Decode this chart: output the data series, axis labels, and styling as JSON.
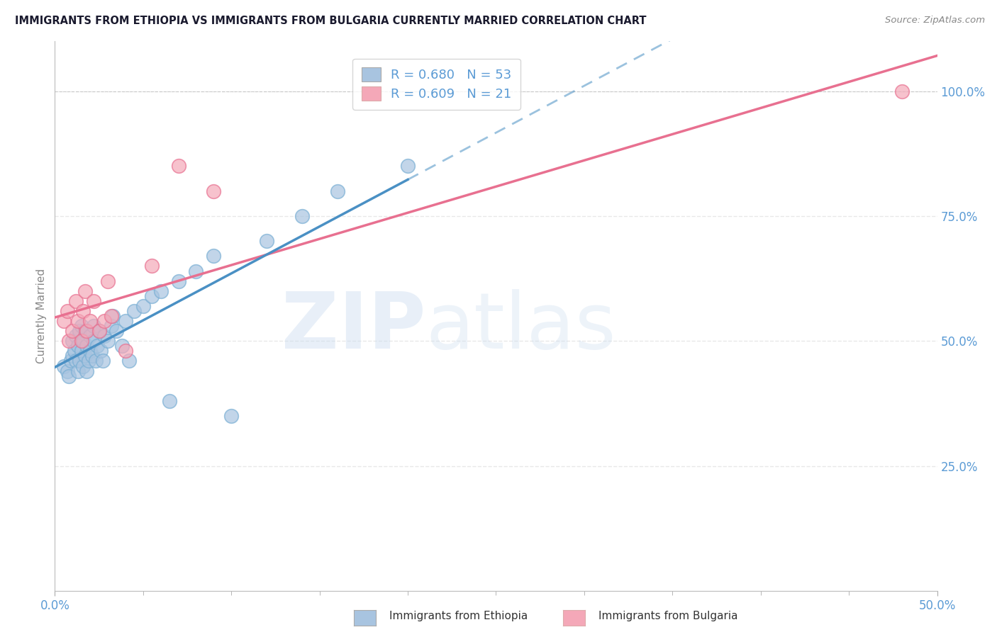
{
  "title": "IMMIGRANTS FROM ETHIOPIA VS IMMIGRANTS FROM BULGARIA CURRENTLY MARRIED CORRELATION CHART",
  "source": "Source: ZipAtlas.com",
  "ylabel": "Currently Married",
  "xlim": [
    0.0,
    0.5
  ],
  "ylim": [
    0.0,
    1.1
  ],
  "xtick_labels_bottom": [
    "0.0%",
    "50.0%"
  ],
  "xtick_vals_bottom": [
    0.0,
    0.5
  ],
  "xtick_minor_vals": [
    0.05,
    0.1,
    0.15,
    0.2,
    0.25,
    0.3,
    0.35,
    0.4,
    0.45
  ],
  "ytick_labels_right": [
    "25.0%",
    "50.0%",
    "75.0%",
    "100.0%"
  ],
  "ytick_vals_right": [
    0.25,
    0.5,
    0.75,
    1.0
  ],
  "ethiopia_color": "#a8c4e0",
  "ethiopia_edge_color": "#7aafd4",
  "bulgaria_color": "#f4a8b8",
  "bulgaria_edge_color": "#e87090",
  "ethiopia_line_color": "#4a90c4",
  "bulgaria_line_color": "#e87090",
  "R_ethiopia": 0.68,
  "N_ethiopia": 53,
  "R_bulgaria": 0.609,
  "N_bulgaria": 21,
  "legend_label_1": "Immigrants from Ethiopia",
  "legend_label_2": "Immigrants from Bulgaria",
  "ethiopia_x": [
    0.005,
    0.007,
    0.008,
    0.009,
    0.01,
    0.01,
    0.011,
    0.012,
    0.012,
    0.013,
    0.013,
    0.014,
    0.014,
    0.015,
    0.015,
    0.016,
    0.016,
    0.017,
    0.017,
    0.018,
    0.018,
    0.019,
    0.02,
    0.02,
    0.021,
    0.022,
    0.022,
    0.023,
    0.024,
    0.025,
    0.026,
    0.027,
    0.028,
    0.03,
    0.032,
    0.033,
    0.035,
    0.038,
    0.04,
    0.042,
    0.045,
    0.05,
    0.055,
    0.06,
    0.065,
    0.07,
    0.08,
    0.09,
    0.1,
    0.12,
    0.14,
    0.16,
    0.2
  ],
  "ethiopia_y": [
    0.45,
    0.44,
    0.43,
    0.46,
    0.47,
    0.5,
    0.48,
    0.46,
    0.51,
    0.49,
    0.44,
    0.52,
    0.46,
    0.48,
    0.53,
    0.45,
    0.5,
    0.47,
    0.52,
    0.44,
    0.49,
    0.46,
    0.51,
    0.48,
    0.47,
    0.5,
    0.53,
    0.46,
    0.49,
    0.52,
    0.48,
    0.46,
    0.51,
    0.5,
    0.53,
    0.55,
    0.52,
    0.49,
    0.54,
    0.46,
    0.56,
    0.57,
    0.59,
    0.6,
    0.38,
    0.62,
    0.64,
    0.67,
    0.35,
    0.7,
    0.75,
    0.8,
    0.85
  ],
  "bulgaria_x": [
    0.005,
    0.007,
    0.008,
    0.01,
    0.012,
    0.013,
    0.015,
    0.016,
    0.017,
    0.018,
    0.02,
    0.022,
    0.025,
    0.028,
    0.03,
    0.032,
    0.04,
    0.055,
    0.07,
    0.09,
    0.48
  ],
  "bulgaria_y": [
    0.54,
    0.56,
    0.5,
    0.52,
    0.58,
    0.54,
    0.5,
    0.56,
    0.6,
    0.52,
    0.54,
    0.58,
    0.52,
    0.54,
    0.62,
    0.55,
    0.48,
    0.65,
    0.85,
    0.8,
    1.0
  ],
  "title_color": "#1a1a2e",
  "grid_color": "#e8e8e8",
  "tick_color": "#5b9bd5",
  "background_color": "#ffffff"
}
